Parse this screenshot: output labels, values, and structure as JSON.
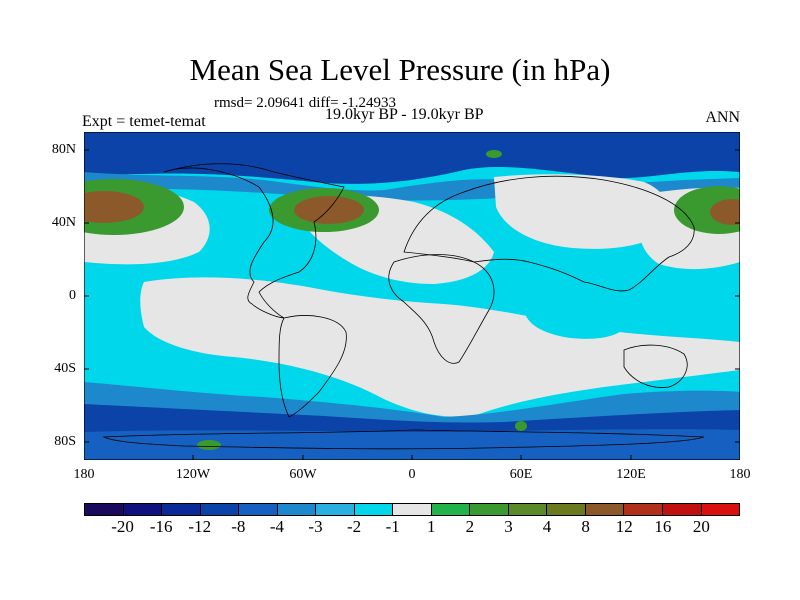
{
  "title": "Mean Sea Level Pressure (in hPa)",
  "stats": "rmsd= 2.09641 diff= -1.24933",
  "expt": "Expt = temet-temat",
  "period": "19.0kyr BP - 19.0kyr BP",
  "season": "ANN",
  "lat_labels": [
    "80N",
    "40N",
    "0",
    "40S",
    "80S"
  ],
  "lon_labels": [
    "180",
    "120W",
    "60W",
    "0",
    "60E",
    "120E",
    "180"
  ],
  "colorbar": {
    "colors": [
      "#1a0a5e",
      "#10107f",
      "#0a2a9a",
      "#0b43a8",
      "#1560c0",
      "#1e88cc",
      "#2ab0e0",
      "#00d7ea",
      "#e6e6e6",
      "#22b24c",
      "#3a9a30",
      "#5c8a28",
      "#6b7a1e",
      "#8c5a2a",
      "#b0301a",
      "#c01010",
      "#d81010"
    ],
    "labels": [
      "-20",
      "-16",
      "-12",
      "-8",
      "-4",
      "-3",
      "-2",
      "-1",
      "1",
      "2",
      "3",
      "4",
      "8",
      "12",
      "16",
      "20"
    ]
  },
  "palette": {
    "ocean_base": "#00d7ea",
    "neutral": "#e6e6e6",
    "deep": "#0b43a8",
    "mid": "#1e88cc",
    "green": "#3a9a30",
    "brown": "#8c5a2a"
  }
}
